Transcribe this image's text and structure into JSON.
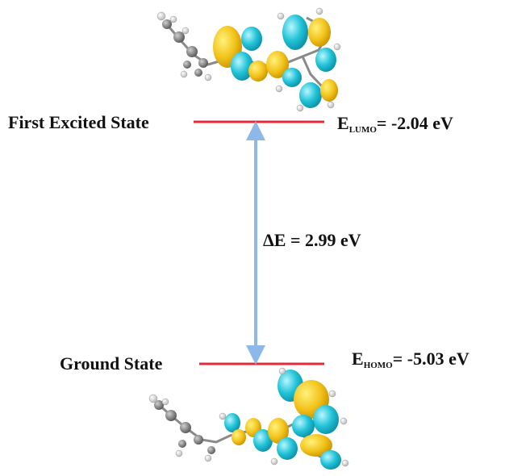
{
  "diagram": {
    "excited_state": {
      "label": "First Excited State",
      "energy_symbol": "E",
      "energy_subscript": "LUMO",
      "energy_value": "= -2.04 eV"
    },
    "ground_state": {
      "label": "Ground State",
      "energy_symbol": "E",
      "energy_subscript": "HOMO",
      "energy_value": "= -5.03 eV"
    },
    "gap": {
      "text": "ΔE = 2.99 eV"
    }
  },
  "colors": {
    "level_line": "#e8283a",
    "arrow": "#8fb8ea",
    "orbital_positive": "#f2c21a",
    "orbital_negative": "#23c4d8",
    "carbon": "#7a7a7a",
    "hydrogen": "#e6e6e6"
  }
}
